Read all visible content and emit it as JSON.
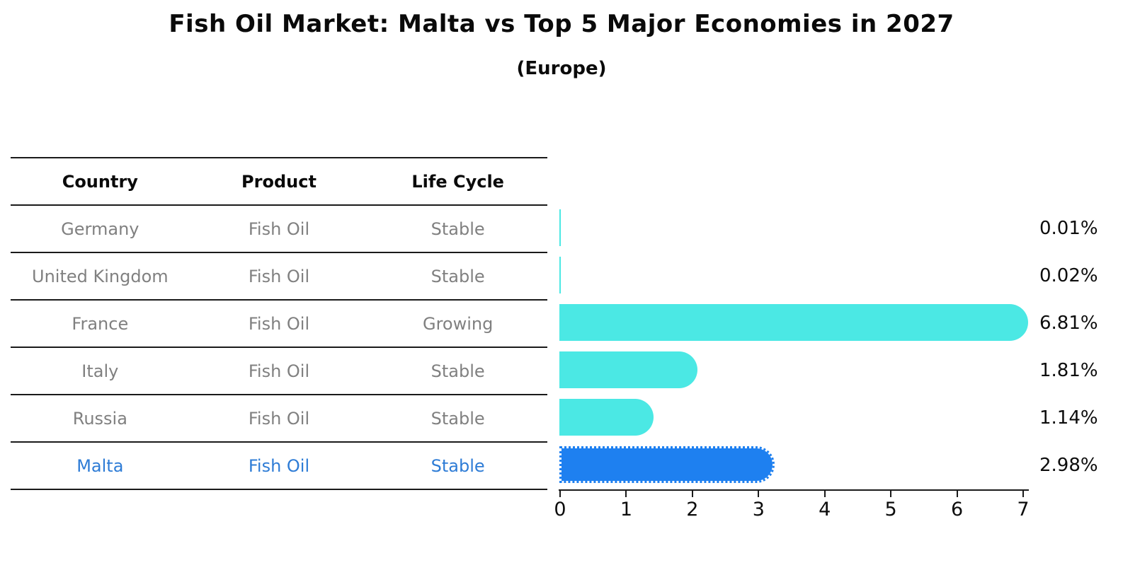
{
  "title": "Fish Oil Market: Malta vs Top 5 Major Economies in 2027",
  "subtitle": "(Europe)",
  "table": {
    "headers": [
      "Country",
      "Product",
      "Life Cycle"
    ],
    "rows": [
      {
        "country": "Germany",
        "product": "Fish Oil",
        "life_cycle": "Stable",
        "highlighted": false
      },
      {
        "country": "United Kingdom",
        "product": "Fish Oil",
        "life_cycle": "Stable",
        "highlighted": false
      },
      {
        "country": "France",
        "product": "Fish Oil",
        "life_cycle": "Growing",
        "highlighted": false
      },
      {
        "country": "Italy",
        "product": "Fish Oil",
        "life_cycle": "Stable",
        "highlighted": false
      },
      {
        "country": "Russia",
        "product": "Fish Oil",
        "life_cycle": "Stable",
        "highlighted": false
      },
      {
        "country": "Malta",
        "product": "Fish Oil",
        "life_cycle": "Stable",
        "highlighted": true
      }
    ]
  },
  "chart_data": {
    "type": "bar",
    "orientation": "horizontal",
    "title": "Fish Oil Market: Malta vs Top 5 Major Economies in 2027",
    "subtitle": "(Europe)",
    "categories": [
      "Germany",
      "United Kingdom",
      "France",
      "Italy",
      "Russia",
      "Malta"
    ],
    "values": [
      0.01,
      0.02,
      6.81,
      1.81,
      1.14,
      2.98
    ],
    "value_labels": [
      "0.01%",
      "0.02%",
      "6.81%",
      "1.81%",
      "1.14%",
      "2.98%"
    ],
    "xlabel": "",
    "ylabel": "",
    "xlim": [
      0,
      7
    ],
    "x_ticks": [
      0,
      1,
      2,
      3,
      4,
      5,
      6,
      7
    ],
    "grid": false,
    "legend": "none",
    "highlight_index": 5,
    "bar_color": "#4be8e4",
    "highlight_color": "#1e80f0",
    "highlight_text_color": "#2e7cd6",
    "label_color": "#808080"
  }
}
